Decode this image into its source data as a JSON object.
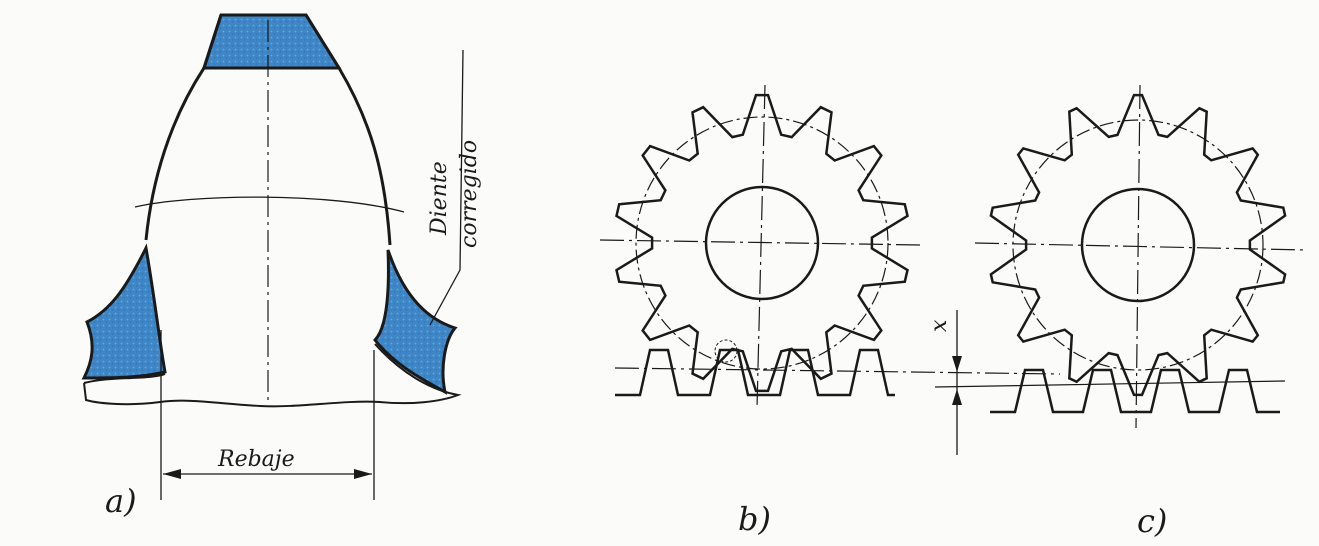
{
  "figure": {
    "panel_a": {
      "label": "a)",
      "dimension_label": "Rebaje",
      "note_line1": "Diente",
      "note_line2": "corregido"
    },
    "panel_b": {
      "label": "b)"
    },
    "panel_c": {
      "label": "c)",
      "offset_label": "x"
    }
  },
  "colors": {
    "ink": "#1a1a1a",
    "highlight": "#3f86c6",
    "paper": "#fbfbf9"
  }
}
